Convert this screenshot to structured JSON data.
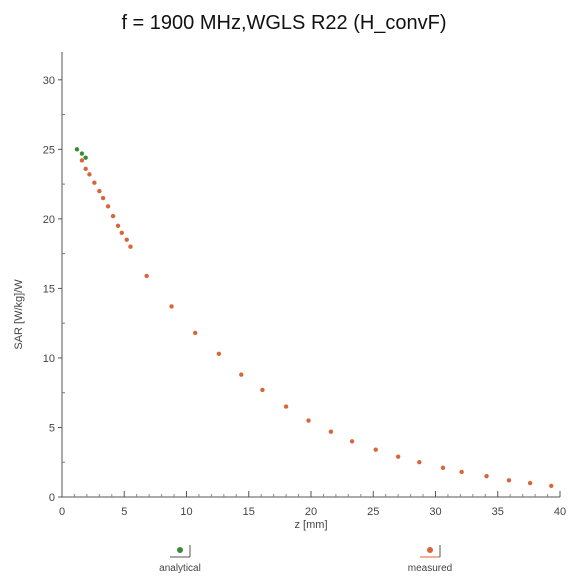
{
  "chart_data": {
    "type": "scatter",
    "title": "f = 1900 MHz,WGLS R22 (H_convF)",
    "xlabel": "z [mm]",
    "ylabel": "SAR [W/kg]/W",
    "xlim": [
      0,
      40
    ],
    "ylim": [
      0,
      32
    ],
    "xticks": [
      0,
      5,
      10,
      15,
      20,
      25,
      30,
      35,
      40
    ],
    "yticks": [
      0,
      5,
      10,
      15,
      20,
      25,
      30
    ],
    "grid": false,
    "legend_position": "bottom",
    "series": [
      {
        "name": "analytical",
        "color": "#3a8a3a",
        "x": [
          1.2,
          1.6,
          1.9
        ],
        "y": [
          25.0,
          24.7,
          24.4
        ]
      },
      {
        "name": "measured",
        "color": "#d9663a",
        "x": [
          1.6,
          1.9,
          2.2,
          2.6,
          3.0,
          3.3,
          3.7,
          4.1,
          4.5,
          4.8,
          5.2,
          5.5,
          6.8,
          8.8,
          10.7,
          12.6,
          14.4,
          16.1,
          18.0,
          19.8,
          21.6,
          23.3,
          25.2,
          27.0,
          28.7,
          30.6,
          32.1,
          34.1,
          35.9,
          37.6,
          39.3
        ],
        "y": [
          24.2,
          23.6,
          23.2,
          22.6,
          22.0,
          21.5,
          20.9,
          20.2,
          19.5,
          19.0,
          18.5,
          18.0,
          15.9,
          13.7,
          11.8,
          10.3,
          8.8,
          7.7,
          6.5,
          5.5,
          4.7,
          4.0,
          3.4,
          2.9,
          2.5,
          2.1,
          1.8,
          1.5,
          1.2,
          1.0,
          0.8
        ]
      }
    ]
  }
}
